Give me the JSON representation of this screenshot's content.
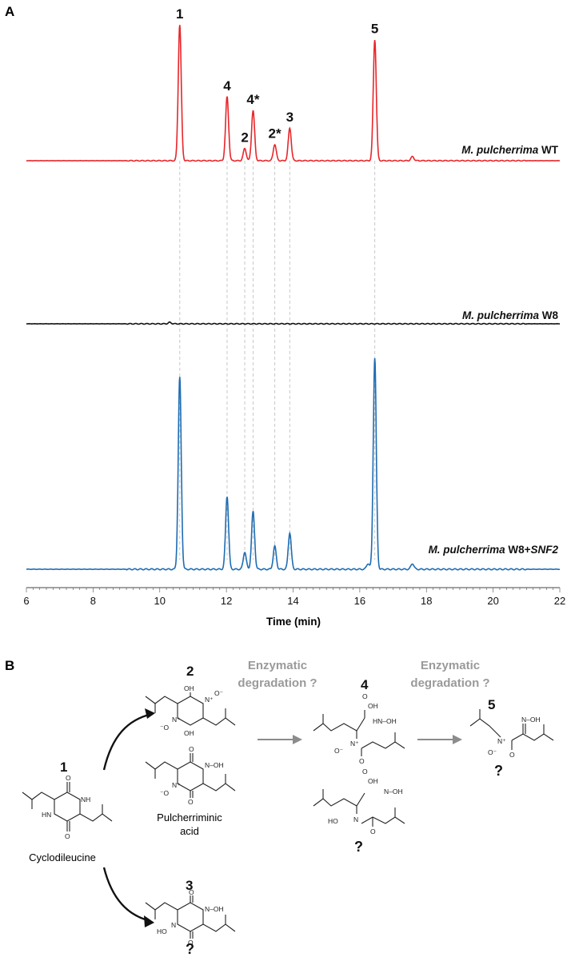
{
  "panel_a_label": "A",
  "panel_b_label": "B",
  "chart_data": {
    "type": "line",
    "xlabel": "Time (min)",
    "ylabel": "",
    "xlim": [
      6,
      22
    ],
    "x_ticks": [
      "6",
      "8",
      "10",
      "12",
      "14",
      "16",
      "18",
      "20",
      "22"
    ],
    "grid": false,
    "series": [
      {
        "name": "M. pulcherrima WT",
        "name_italic": "M. pulcherrima",
        "name_suffix": " WT",
        "color": "#e8262a",
        "peaks": [
          {
            "x": 10.6,
            "height": 1.0
          },
          {
            "x": 12.02,
            "height": 0.47
          },
          {
            "x": 12.55,
            "height": 0.09
          },
          {
            "x": 12.8,
            "height": 0.37
          },
          {
            "x": 13.45,
            "height": 0.12
          },
          {
            "x": 13.9,
            "height": 0.24
          },
          {
            "x": 16.45,
            "height": 0.89
          },
          {
            "x": 17.58,
            "height": 0.03
          }
        ]
      },
      {
        "name": "M. pulcherrima W8",
        "name_italic": "M. pulcherrima",
        "name_suffix": " W8",
        "color": "#111111",
        "peaks": [
          {
            "x": 10.3,
            "height": 0.01
          }
        ]
      },
      {
        "name": "M. pulcherrima W8+SNF2",
        "name_italic": "M. pulcherrima",
        "name_suffix": " W8+",
        "name_suffix_italic": "SNF2",
        "color": "#1f6db3",
        "peaks": [
          {
            "x": 10.6,
            "height": 1.0
          },
          {
            "x": 12.02,
            "height": 0.38
          },
          {
            "x": 12.55,
            "height": 0.09
          },
          {
            "x": 12.8,
            "height": 0.3
          },
          {
            "x": 13.45,
            "height": 0.12
          },
          {
            "x": 13.9,
            "height": 0.19
          },
          {
            "x": 16.25,
            "height": 0.03
          },
          {
            "x": 16.45,
            "height": 1.1
          },
          {
            "x": 17.58,
            "height": 0.03
          }
        ]
      }
    ],
    "peak_labels": [
      {
        "text": "1",
        "x": 10.6
      },
      {
        "text": "4",
        "x": 12.02
      },
      {
        "text": "2",
        "x": 12.55
      },
      {
        "text": "4*",
        "x": 12.8
      },
      {
        "text": "2*",
        "x": 13.45
      },
      {
        "text": "3",
        "x": 13.9
      },
      {
        "text": "5",
        "x": 16.45
      }
    ]
  },
  "scheme": {
    "compound_1": {
      "number": "1",
      "name": "Cyclodileucine"
    },
    "compound_2": {
      "number": "2",
      "name_line1": "Pulcherriminic",
      "name_line2": "acid"
    },
    "compound_3": {
      "number": "3",
      "mark": "?"
    },
    "compound_4": {
      "number": "4",
      "mark": "?"
    },
    "compound_5": {
      "number": "5",
      "mark": "?"
    },
    "step_1": {
      "line1": "Enzymatic",
      "line2": "degradation ?"
    },
    "step_2": {
      "line1": "Enzymatic",
      "line2": "degradation ?"
    },
    "atoms": {
      "oh": "OH",
      "nh": "NH",
      "hn": "HN",
      "o": "O",
      "n": "N",
      "n_plus": "N⁺",
      "o_minus": "O⁻",
      "minus_o": "⁻O",
      "ho": "HO",
      "hn_oh": "HN–OH",
      "oh_n": "N–OH"
    }
  }
}
